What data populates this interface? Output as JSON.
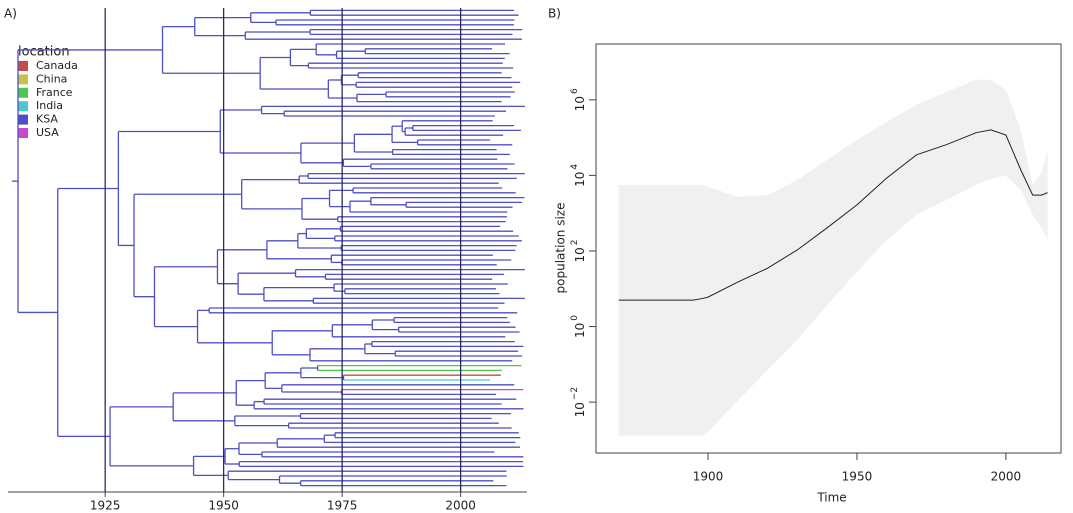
{
  "chart_data": [
    {
      "type": "tree",
      "title": "A)",
      "legend_title": "location",
      "series": [
        {
          "name": "Canada",
          "color": "#c94a4a"
        },
        {
          "name": "China",
          "color": "#c9c24a"
        },
        {
          "name": "France",
          "color": "#4ac94a"
        },
        {
          "name": "India",
          "color": "#4ac9c9"
        },
        {
          "name": "KSA",
          "color": "#4f4fc4"
        },
        {
          "name": "USA",
          "color": "#c94ac9"
        }
      ],
      "xlim": [
        1904.5,
        2014
      ],
      "xticks": [
        1925,
        1950,
        1975,
        2000
      ],
      "grid": true,
      "grid_color": "#1c1c5c"
    },
    {
      "type": "line",
      "title": "B)",
      "xlabel": "Time",
      "ylabel": "population size",
      "log_y": true,
      "x": [
        1870,
        1895,
        1898,
        1900,
        1910,
        1920,
        1930,
        1940,
        1950,
        1960,
        1970,
        1980,
        1990,
        1995,
        2000,
        2005,
        2009,
        2012,
        2014
      ],
      "median": [
        5,
        5,
        5.5,
        6,
        15,
        35,
        107,
        410,
        1660,
        8500,
        35000,
        65000,
        135000,
        160000,
        117000,
        14000,
        3000,
        3000,
        3500
      ],
      "upper": [
        5600,
        5600,
        5600,
        5000,
        2700,
        3000,
        7600,
        26000,
        87000,
        260000,
        740000,
        1600000,
        3400000,
        3400000,
        1800000,
        160000,
        5600,
        12000,
        48000
      ],
      "lower": [
        0.0013,
        0.0013,
        0.0013,
        0.0016,
        0.011,
        0.07,
        0.44,
        3.7,
        28,
        195,
        900,
        2200,
        5600,
        8000,
        10000,
        4000,
        900,
        400,
        195
      ],
      "line_color": "#222222",
      "band_color": "#f0f0f0",
      "xlim": [
        1862.4,
        2018.5
      ],
      "xticks": [
        1900,
        1950,
        2000
      ],
      "ylim": [
        0.00045,
        30000000
      ],
      "yticks": [
        {
          "value": 0.01,
          "label": "10",
          "exponent": "−2"
        },
        {
          "value": 1,
          "label": "10",
          "exponent": "0"
        },
        {
          "value": 100,
          "label": "10",
          "exponent": "2"
        },
        {
          "value": 10000,
          "label": "10",
          "exponent": "4"
        },
        {
          "value": 1000000,
          "label": "10",
          "exponent": "6"
        }
      ]
    }
  ]
}
